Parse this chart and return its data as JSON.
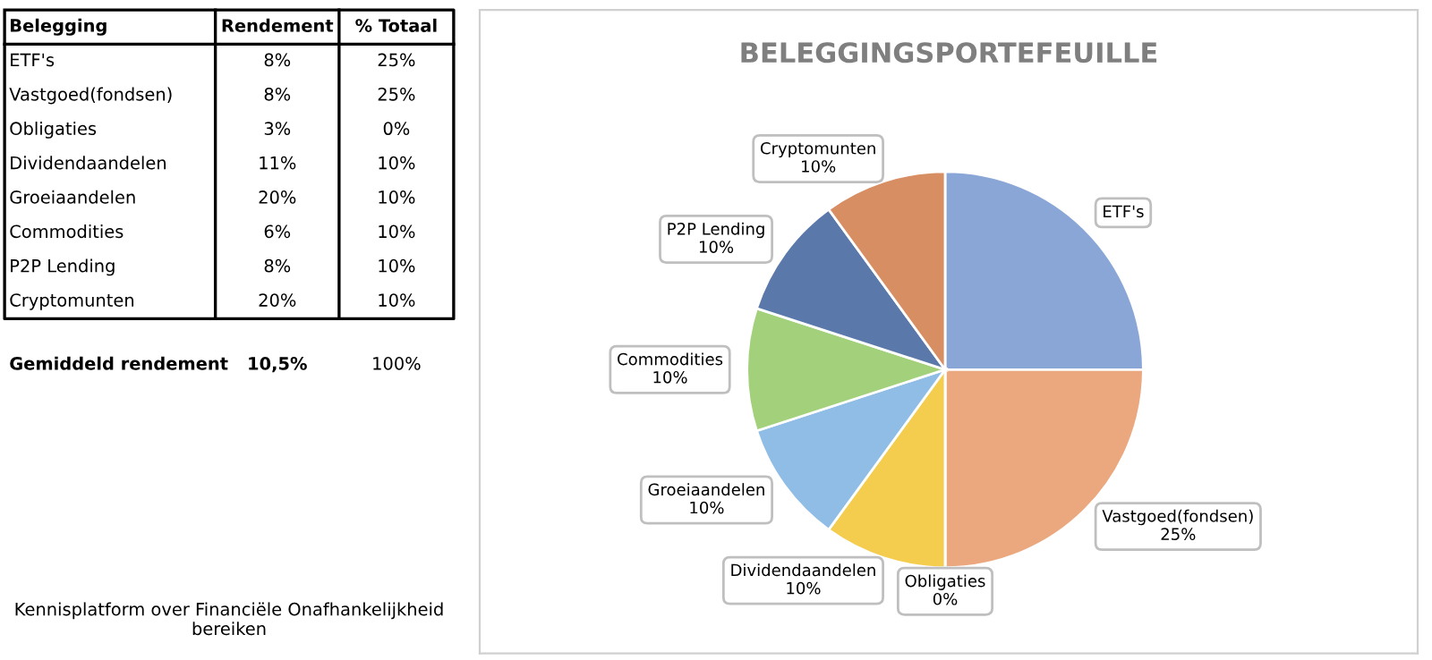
{
  "chart_data": [
    {
      "type": "other",
      "annotations": [
        "Belegging",
        "Rendement",
        "% Totaal",
        "ETF's",
        "8%",
        "25%",
        "Vastgoed(fondsen)",
        "8%",
        "25%",
        "Obligaties",
        "3%",
        "0%",
        "Dividendaandelen",
        "11%",
        "10%",
        "Groeiaandelen",
        "20%",
        "10%",
        "Commodities",
        "6%",
        "10%",
        "P2P Lending",
        "8%",
        "10%",
        "Cryptomunten",
        "20%",
        "10%",
        "Gemiddeld rendement",
        "10,5%",
        "100%",
        "Kennisplatform over Financiële Onafhankelijkheid bereiken"
      ]
    },
    {
      "type": "pie",
      "title": "BELEGGINGSPORTEFEUILLE",
      "categories": [
        "ETF's",
        "Vastgoed(fondsen)",
        "Obligaties",
        "Dividendaandelen",
        "Groeiaandelen",
        "Commodities",
        "P2P Lending",
        "Cryptomunten"
      ],
      "values": [
        25,
        25,
        0,
        10,
        10,
        10,
        10,
        10
      ],
      "colors": [
        "#8aa6d6",
        "#eba77e",
        "#c9c9c9",
        "#f5cd4e",
        "#8fbde6",
        "#a3d07a",
        "#5a78aa",
        "#d88e63"
      ],
      "value_labels": [
        null,
        "25%",
        "0%",
        "10%",
        "10%",
        "10%",
        "10%",
        "10%"
      ]
    }
  ]
}
